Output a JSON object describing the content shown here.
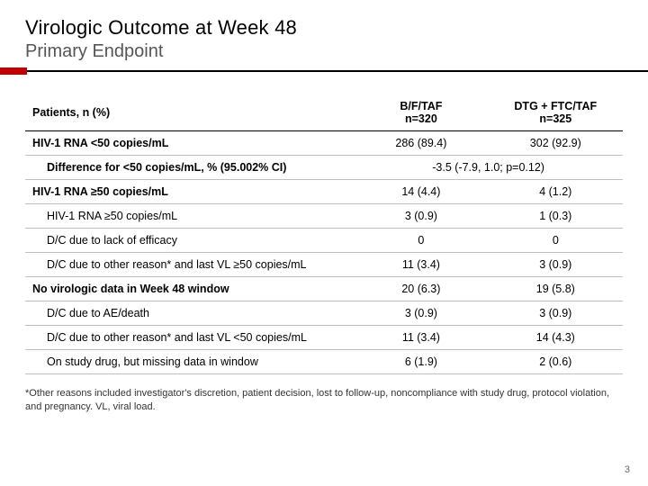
{
  "title": "Virologic Outcome at Week 48",
  "subtitle": "Primary Endpoint",
  "accent_color": "#c00000",
  "page_number": "3",
  "footnote": "*Other reasons included investigator's discretion, patient decision, lost to follow-up, noncompliance with study drug, protocol violation, and pregnancy. VL, viral load.",
  "table": {
    "type": "table",
    "background_color": "#ffffff",
    "header_border_color": "#000000",
    "row_border_color": "#bfbfbf",
    "font_size_pt": 9,
    "columns": [
      {
        "label_line1": "Patients, n (%)",
        "label_line2": "",
        "align": "left",
        "width_pct": 55
      },
      {
        "label_line1": "B/F/TAF",
        "label_line2": "n=320",
        "align": "center",
        "width_pct": 22.5
      },
      {
        "label_line1": "DTG + FTC/TAF",
        "label_line2": "n=325",
        "align": "center",
        "width_pct": 22.5
      }
    ],
    "rows": [
      {
        "label": "HIV-1 RNA <50 copies/mL",
        "indent": 0,
        "bold": true,
        "c1": "286 (89.4)",
        "c2": "302 (92.9)"
      },
      {
        "label": "Difference for <50 copies/mL, % (95.002% CI)",
        "indent": 1,
        "bold": true,
        "merged": "-3.5 (-7.9, 1.0; p=0.12)"
      },
      {
        "label": "HIV-1 RNA ≥50 copies/mL",
        "indent": 0,
        "bold": true,
        "c1": "14 (4.4)",
        "c2": "4 (1.2)"
      },
      {
        "label": "HIV-1 RNA ≥50 copies/mL",
        "indent": 1,
        "bold": false,
        "c1": "3 (0.9)",
        "c2": "1 (0.3)"
      },
      {
        "label": "D/C due to lack of efficacy",
        "indent": 1,
        "bold": false,
        "c1": "0",
        "c2": "0"
      },
      {
        "label": "D/C due to other reason* and last VL ≥50 copies/mL",
        "indent": 1,
        "bold": false,
        "c1": "11 (3.4)",
        "c2": "3 (0.9)"
      },
      {
        "label": "No virologic data in Week 48 window",
        "indent": 0,
        "bold": true,
        "c1": "20 (6.3)",
        "c2": "19 (5.8)"
      },
      {
        "label": "D/C due to AE/death",
        "indent": 1,
        "bold": false,
        "c1": "3 (0.9)",
        "c2": "3 (0.9)"
      },
      {
        "label": "D/C due to other reason* and last VL <50 copies/mL",
        "indent": 1,
        "bold": false,
        "c1": "11 (3.4)",
        "c2": "14 (4.3)"
      },
      {
        "label": "On study drug, but missing data in window",
        "indent": 1,
        "bold": false,
        "c1": "6 (1.9)",
        "c2": "2 (0.6)"
      }
    ]
  }
}
